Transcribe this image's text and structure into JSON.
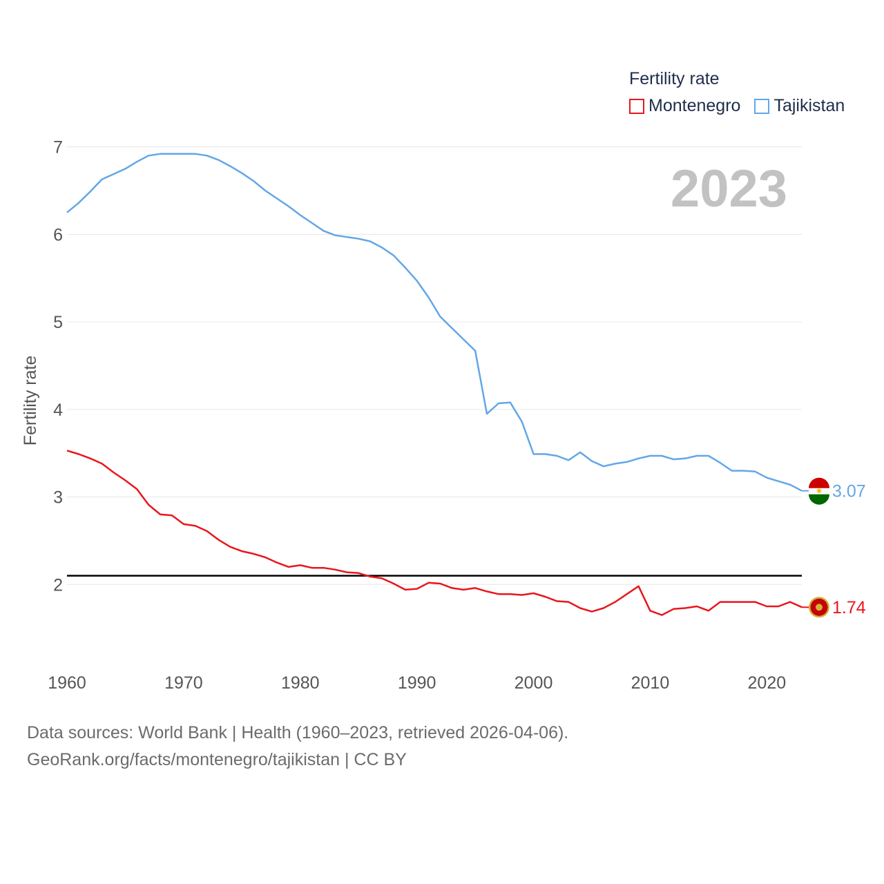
{
  "legend": {
    "title": "Fertility rate",
    "items": [
      "Montenegro",
      "Tajikistan"
    ]
  },
  "source": {
    "line1": "Data sources: World Bank | Health (1960–2023, retrieved 2026-04-06).",
    "line2": "GeoRank.org/facts/montenegro/tajikistan | CC BY"
  },
  "colors": {
    "montenegro": "#e8161c",
    "tajikistan": "#62a6e8",
    "reference": "#000000",
    "year_watermark": "#c2c2c2"
  },
  "chart_data": {
    "type": "line",
    "year_label": "2023",
    "ylabel": "Fertility rate",
    "xlim": [
      1960,
      2023
    ],
    "ylim": [
      1.3,
      7.1
    ],
    "x_ticks": [
      1960,
      1970,
      1980,
      1990,
      2000,
      2010,
      2020
    ],
    "y_ticks": [
      2,
      3,
      4,
      5,
      6,
      7
    ],
    "reference_line": 2.1,
    "x": [
      1960,
      1961,
      1962,
      1963,
      1964,
      1965,
      1966,
      1967,
      1968,
      1969,
      1970,
      1971,
      1972,
      1973,
      1974,
      1975,
      1976,
      1977,
      1978,
      1979,
      1980,
      1981,
      1982,
      1983,
      1984,
      1985,
      1986,
      1987,
      1988,
      1989,
      1990,
      1991,
      1992,
      1993,
      1994,
      1995,
      1996,
      1997,
      1998,
      1999,
      2000,
      2001,
      2002,
      2003,
      2004,
      2005,
      2006,
      2007,
      2008,
      2009,
      2010,
      2011,
      2012,
      2013,
      2014,
      2015,
      2016,
      2017,
      2018,
      2019,
      2020,
      2021,
      2022,
      2023
    ],
    "series": [
      {
        "name": "Montenegro",
        "color": "#e8161c",
        "end_label": "1.74",
        "values": [
          3.53,
          3.49,
          3.44,
          3.38,
          3.28,
          3.19,
          3.09,
          2.91,
          2.8,
          2.79,
          2.69,
          2.67,
          2.61,
          2.51,
          2.43,
          2.38,
          2.35,
          2.31,
          2.25,
          2.2,
          2.22,
          2.19,
          2.19,
          2.17,
          2.14,
          2.13,
          2.09,
          2.07,
          2.01,
          1.94,
          1.95,
          2.02,
          2.01,
          1.96,
          1.94,
          1.96,
          1.92,
          1.89,
          1.89,
          1.88,
          1.9,
          1.86,
          1.81,
          1.8,
          1.73,
          1.69,
          1.73,
          1.8,
          1.89,
          1.98,
          1.7,
          1.65,
          1.72,
          1.73,
          1.75,
          1.7,
          1.8,
          1.8,
          1.8,
          1.8,
          1.75,
          1.75,
          1.8,
          1.74
        ]
      },
      {
        "name": "Tajikistan",
        "color": "#62a6e8",
        "end_label": "3.07",
        "values": [
          6.25,
          6.36,
          6.49,
          6.63,
          6.69,
          6.75,
          6.83,
          6.9,
          6.92,
          6.92,
          6.92,
          6.92,
          6.9,
          6.85,
          6.78,
          6.7,
          6.61,
          6.5,
          6.41,
          6.32,
          6.22,
          6.13,
          6.04,
          5.99,
          5.97,
          5.95,
          5.92,
          5.85,
          5.76,
          5.62,
          5.47,
          5.28,
          5.06,
          4.93,
          4.8,
          4.67,
          3.95,
          4.07,
          4.08,
          3.86,
          3.49,
          3.49,
          3.47,
          3.42,
          3.51,
          3.41,
          3.35,
          3.38,
          3.4,
          3.44,
          3.47,
          3.47,
          3.43,
          3.44,
          3.47,
          3.47,
          3.39,
          3.3,
          3.3,
          3.29,
          3.22,
          3.18,
          3.14,
          3.07
        ]
      }
    ]
  }
}
